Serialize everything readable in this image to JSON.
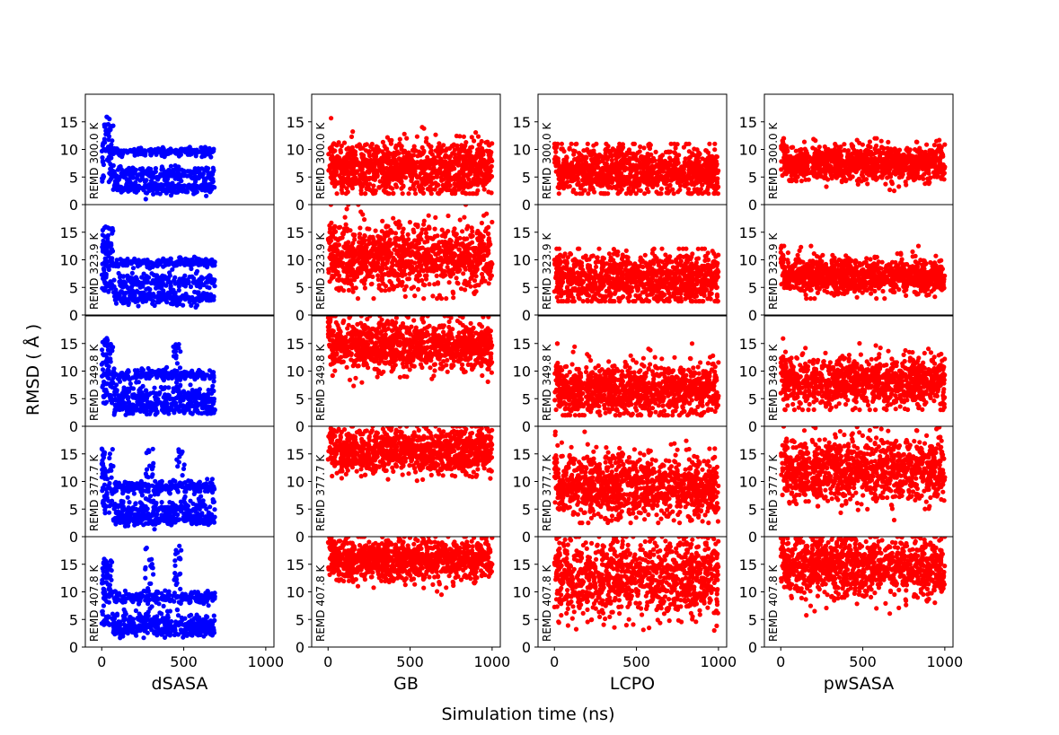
{
  "figure": {
    "ylabel": "RMSD ( Å )",
    "xlabel": "Simulation time (ns)"
  },
  "chart_data": {
    "type": "scatter",
    "layout": "5x4 grid of scatter panels (rows = REMD temperature, columns = solvation method)",
    "columns": [
      {
        "name": "dSASA",
        "color": "#0000ff",
        "x_max_data": 690
      },
      {
        "name": "GB",
        "color": "#ff0000",
        "x_max_data": 1000
      },
      {
        "name": "LCPO",
        "color": "#ff0000",
        "x_max_data": 1000
      },
      {
        "name": "pwSASA",
        "color": "#ff0000",
        "x_max_data": 1000
      }
    ],
    "rows": [
      {
        "label": "REMD 300.0 K"
      },
      {
        "label": "REMD 323.9 K"
      },
      {
        "label": "REMD 349.8 K"
      },
      {
        "label": "REMD 377.7 K"
      },
      {
        "label": "REMD 407.8 K"
      }
    ],
    "xlim": [
      -100,
      1050
    ],
    "ylim": [
      0,
      20
    ],
    "xticks": [
      0,
      500,
      1000
    ],
    "yticks": [
      0,
      5,
      10,
      15
    ],
    "grid": false,
    "panel_distributions": [
      [
        {
          "type": "dsasa",
          "bands": [
            [
              9.5,
              0.4
            ],
            [
              5.5,
              0.7
            ],
            [
              3.0,
              0.5
            ]
          ],
          "peaks": []
        },
        {
          "type": "dsasa",
          "bands": [
            [
              9.5,
              0.4
            ],
            [
              6.0,
              0.7
            ],
            [
              3.2,
              0.6
            ]
          ],
          "peaks": []
        },
        {
          "type": "dsasa",
          "bands": [
            [
              9.3,
              0.5
            ],
            [
              5.5,
              0.8
            ],
            [
              3.2,
              0.6
            ]
          ],
          "peaks": [
            [
              460,
              15
            ]
          ]
        },
        {
          "type": "dsasa",
          "bands": [
            [
              9.0,
              0.6
            ],
            [
              5.0,
              0.9
            ],
            [
              3.2,
              0.6
            ]
          ],
          "peaks": [
            [
              290,
              16
            ],
            [
              480,
              17
            ]
          ]
        },
        {
          "type": "dsasa",
          "bands": [
            [
              9.0,
              0.6
            ],
            [
              4.5,
              1.0
            ],
            [
              3.0,
              0.6
            ]
          ],
          "peaks": [
            [
              290,
              19
            ],
            [
              460,
              19
            ]
          ]
        }
      ],
      [
        {
          "type": "red",
          "mean": 6.5,
          "sd": 2.4,
          "min": 2,
          "max": 20
        },
        {
          "type": "red",
          "mean": 10.5,
          "sd": 3.0,
          "min": 3,
          "max": 20
        },
        {
          "type": "red",
          "mean": 14.5,
          "sd": 2.3,
          "min": 4,
          "max": 20
        },
        {
          "type": "red",
          "mean": 15.5,
          "sd": 2.0,
          "min": 5,
          "max": 20
        },
        {
          "type": "red",
          "mean": 15.8,
          "sd": 1.9,
          "min": 8,
          "max": 20
        }
      ],
      [
        {
          "type": "red",
          "mean": 6.0,
          "sd": 2.2,
          "min": 2,
          "max": 11
        },
        {
          "type": "red",
          "mean": 6.5,
          "sd": 2.3,
          "min": 2.5,
          "max": 12
        },
        {
          "type": "red",
          "mean": 6.5,
          "sd": 2.4,
          "min": 2,
          "max": 15
        },
        {
          "type": "red",
          "mean": 9.0,
          "sd": 3.0,
          "min": 2.5,
          "max": 19
        },
        {
          "type": "red",
          "mean": 12.5,
          "sd": 3.5,
          "min": 3,
          "max": 20
        }
      ],
      [
        {
          "type": "red",
          "mean": 7.5,
          "sd": 1.6,
          "min": 2.5,
          "max": 12
        },
        {
          "type": "red",
          "mean": 7.0,
          "sd": 1.6,
          "min": 3,
          "max": 12.5
        },
        {
          "type": "red",
          "mean": 8.0,
          "sd": 2.2,
          "min": 3,
          "max": 16
        },
        {
          "type": "red",
          "mean": 12.0,
          "sd": 3.0,
          "min": 3,
          "max": 20
        },
        {
          "type": "red",
          "mean": 14.5,
          "sd": 2.8,
          "min": 4,
          "max": 20
        }
      ]
    ]
  }
}
